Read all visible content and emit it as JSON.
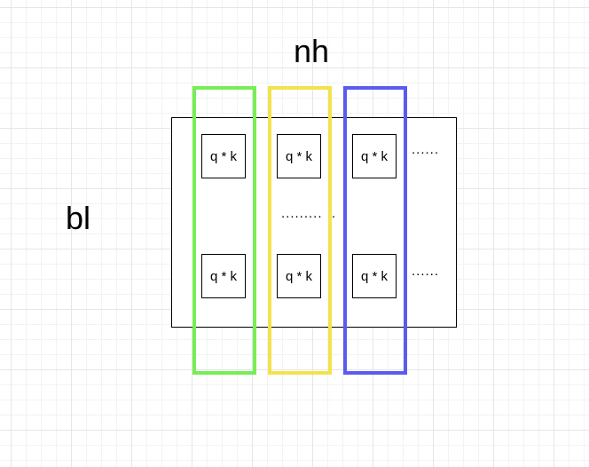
{
  "diagram": {
    "label_top": "nh",
    "label_left": "bl",
    "cell_text": "q * k",
    "dots_right": "......",
    "dots_middle": ".........  ..",
    "column_colors": [
      "#77ee55",
      "#f2e34c",
      "#5b5bf0"
    ],
    "cells": [
      {
        "text": "q * k"
      },
      {
        "text": "q * k"
      },
      {
        "text": "q * k"
      },
      {
        "text": "q * k"
      },
      {
        "text": "q * k"
      },
      {
        "text": "q * k"
      }
    ]
  }
}
